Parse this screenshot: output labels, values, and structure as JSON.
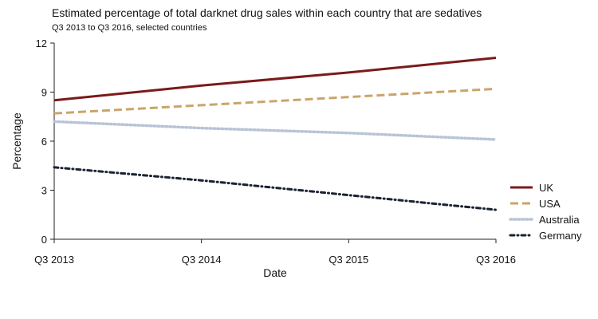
{
  "chart_data": {
    "type": "line",
    "title": "Estimated percentage of total darknet drug sales within each country that are sedatives",
    "subtitle": "Q3 2013 to Q3 2016, selected countries",
    "xlabel": "Date",
    "ylabel": "Percentage",
    "x": [
      "Q3 2013",
      "Q3 2014",
      "Q3 2015",
      "Q3 2016"
    ],
    "xlim": [
      "Q3 2013",
      "Q3 2016"
    ],
    "ylim": [
      0,
      12
    ],
    "yticks": [
      0,
      3,
      6,
      9,
      12
    ],
    "grid": false,
    "legend": "right",
    "series": [
      {
        "name": "UK",
        "values": [
          8.5,
          9.4,
          10.2,
          11.1
        ],
        "color": "#7b1a1a",
        "dash": "solid"
      },
      {
        "name": "USA",
        "values": [
          7.7,
          8.2,
          8.7,
          9.2
        ],
        "color": "#c9a56b",
        "dash": "dashed"
      },
      {
        "name": "Australia",
        "values": [
          7.2,
          6.8,
          6.5,
          6.1
        ],
        "color": "#b8c4d6",
        "dash": "dotted"
      },
      {
        "name": "Germany",
        "values": [
          4.4,
          3.6,
          2.7,
          1.8
        ],
        "color": "#1b2233",
        "dash": "dashdot"
      }
    ]
  }
}
